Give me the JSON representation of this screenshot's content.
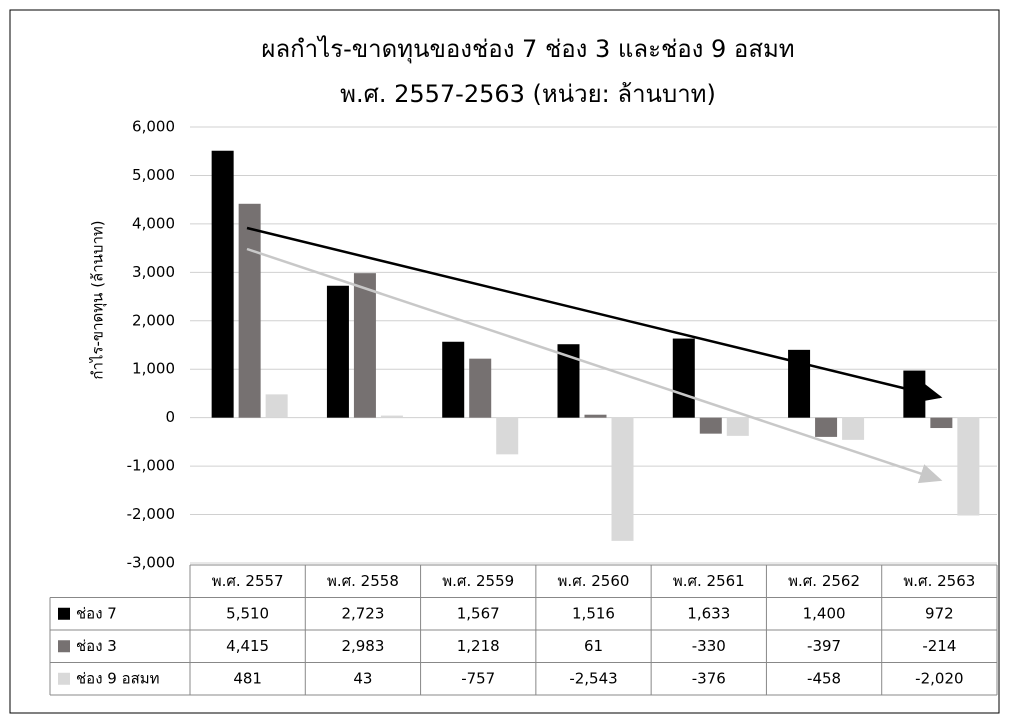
{
  "chart_data": {
    "type": "bar",
    "title": [
      "ผลกำไร-ขาดทุนของช่อง 7 ช่อง 3 และช่อง 9 อสมท",
      "พ.ศ. 2557-2563 (หน่วย: ล้านบาท)"
    ],
    "y_label": "กำไร-ขาดทุน (ล้านบาท)",
    "categories": [
      "พ.ศ. 2557",
      "พ.ศ. 2558",
      "พ.ศ. 2559",
      "พ.ศ. 2560",
      "พ.ศ. 2561",
      "พ.ศ. 2562",
      "พ.ศ. 2563"
    ],
    "series": [
      {
        "name": "ช่อง 7",
        "color": "#000000",
        "values": [
          5510,
          2723,
          1567,
          1516,
          1633,
          1400,
          972
        ],
        "value_labels": [
          "5,510",
          "2,723",
          "1,567",
          "1,516",
          "1,633",
          "1,400",
          "972"
        ]
      },
      {
        "name": "ช่อง 3",
        "color": "#767171",
        "values": [
          4415,
          2983,
          1218,
          61,
          -330,
          -397,
          -214
        ],
        "value_labels": [
          "4,415",
          "2,983",
          "1,218",
          "61",
          "-330",
          "-397",
          "-214"
        ]
      },
      {
        "name": "ช่อง 9 อสมท",
        "color": "#d9d9d9",
        "values": [
          481,
          43,
          -757,
          -2543,
          -376,
          -458,
          -2020
        ],
        "value_labels": [
          "481",
          "43",
          "-757",
          "-2,543",
          "-376",
          "-458",
          "-2,020"
        ]
      }
    ],
    "ylim": [
      -3000,
      6000
    ],
    "yticks": [
      {
        "value": -3000,
        "label": "-3,000"
      },
      {
        "value": -2000,
        "label": "-2,000"
      },
      {
        "value": -1000,
        "label": "-1,000"
      },
      0,
      {
        "value": 1000,
        "label": "1,000"
      },
      {
        "value": 2000,
        "label": "2,000"
      },
      {
        "value": 3000,
        "label": "3,000"
      },
      {
        "value": 4000,
        "label": "4,000"
      },
      {
        "value": 5000,
        "label": "5,000"
      },
      {
        "value": 6000,
        "label": "6,000"
      }
    ],
    "grid": true
  }
}
